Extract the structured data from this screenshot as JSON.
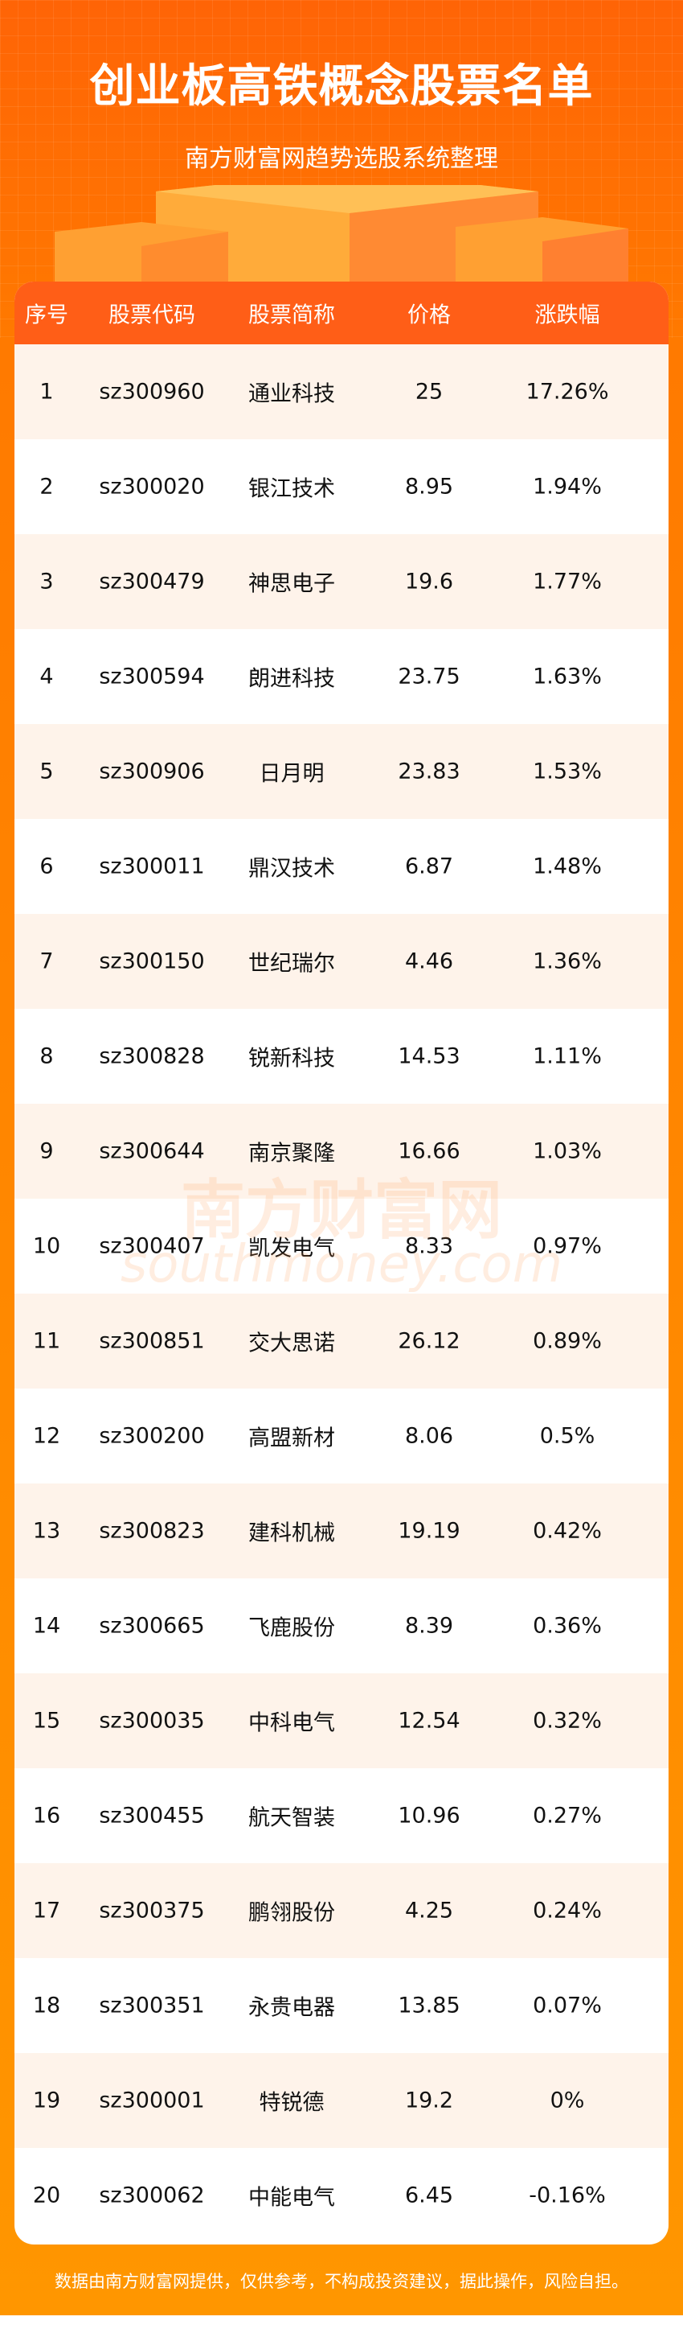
{
  "header": {
    "title": "创业板高铁概念股票名单",
    "subtitle": "南方财富网趋势选股系统整理"
  },
  "table": {
    "columns": [
      "序号",
      "股票代码",
      "股票简称",
      "价格",
      "涨跌幅"
    ],
    "rows": [
      [
        "1",
        "sz300960",
        "通业科技",
        "25",
        "17.26%"
      ],
      [
        "2",
        "sz300020",
        "银江技术",
        "8.95",
        "1.94%"
      ],
      [
        "3",
        "sz300479",
        "神思电子",
        "19.6",
        "1.77%"
      ],
      [
        "4",
        "sz300594",
        "朗进科技",
        "23.75",
        "1.63%"
      ],
      [
        "5",
        "sz300906",
        "日月明",
        "23.83",
        "1.53%"
      ],
      [
        "6",
        "sz300011",
        "鼎汉技术",
        "6.87",
        "1.48%"
      ],
      [
        "7",
        "sz300150",
        "世纪瑞尔",
        "4.46",
        "1.36%"
      ],
      [
        "8",
        "sz300828",
        "锐新科技",
        "14.53",
        "1.11%"
      ],
      [
        "9",
        "sz300644",
        "南京聚隆",
        "16.66",
        "1.03%"
      ],
      [
        "10",
        "sz300407",
        "凯发电气",
        "8.33",
        "0.97%"
      ],
      [
        "11",
        "sz300851",
        "交大思诺",
        "26.12",
        "0.89%"
      ],
      [
        "12",
        "sz300200",
        "高盟新材",
        "8.06",
        "0.5%"
      ],
      [
        "13",
        "sz300823",
        "建科机械",
        "19.19",
        "0.42%"
      ],
      [
        "14",
        "sz300665",
        "飞鹿股份",
        "8.39",
        "0.36%"
      ],
      [
        "15",
        "sz300035",
        "中科电气",
        "12.54",
        "0.32%"
      ],
      [
        "16",
        "sz300455",
        "航天智装",
        "10.96",
        "0.27%"
      ],
      [
        "17",
        "sz300375",
        "鹏翎股份",
        "4.25",
        "0.24%"
      ],
      [
        "18",
        "sz300351",
        "永贵电器",
        "13.85",
        "0.07%"
      ],
      [
        "19",
        "sz300001",
        "特锐德",
        "19.2",
        "0%"
      ],
      [
        "20",
        "sz300062",
        "中能电气",
        "6.45",
        "-0.16%"
      ]
    ]
  },
  "watermark": {
    "cn": "南方财富网",
    "en": "southmoney.com"
  },
  "footer": "数据由南方财富网提供，仅供参考，不构成投资建议，据此操作，风险自担。",
  "colors": {
    "background": "#ff7a00",
    "header_row": "#ff5e17",
    "stripe": "#fef3ea"
  }
}
